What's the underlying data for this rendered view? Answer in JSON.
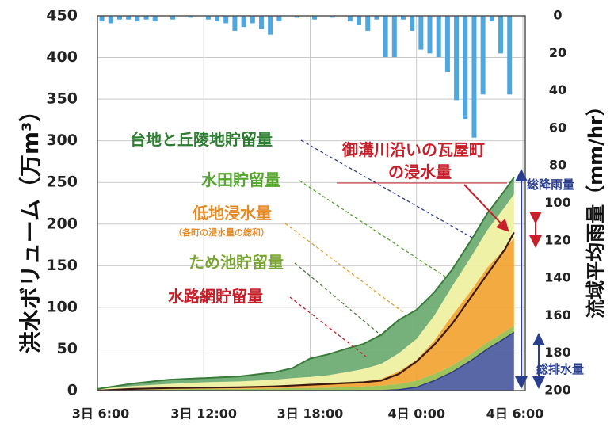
{
  "chart_data": {
    "type": "area",
    "ylabel_left": "洪水ボリューム（万m³）",
    "ylabel_right": "流域平均雨量（mm/hr）",
    "x_ticks": [
      "3日 6:00",
      "3日 12:00",
      "3日 18:00",
      "4日 0:00",
      "4日 6:00"
    ],
    "x_tick_hours": [
      0,
      6,
      12,
      18,
      24
    ],
    "ylim_left": [
      0,
      450
    ],
    "y_ticks_left": [
      0,
      50,
      100,
      150,
      200,
      250,
      300,
      350,
      400,
      450
    ],
    "ylim_right_inverted": [
      0,
      200
    ],
    "y_ticks_right": [
      0,
      20,
      40,
      60,
      80,
      100,
      120,
      140,
      160,
      180,
      200
    ],
    "grid": true,
    "x_hours": [
      0,
      2,
      4,
      6,
      8,
      10,
      11,
      12,
      13,
      14,
      15,
      16,
      17,
      18,
      19,
      20,
      21,
      22,
      23,
      23.5
    ],
    "series": [
      {
        "key": "waterway",
        "name": "水路網貯留量",
        "values": [
          0,
          0,
          0,
          0,
          0,
          0,
          0,
          0,
          0,
          0,
          0,
          0,
          1,
          4,
          12,
          22,
          35,
          50,
          63,
          70
        ]
      },
      {
        "key": "pond",
        "name": "ため池貯留量",
        "values": [
          0.5,
          1,
          1.5,
          2,
          2,
          2.5,
          3,
          3,
          3.5,
          4,
          5,
          6,
          7,
          8,
          8,
          8,
          8,
          8,
          8,
          8
        ]
      },
      {
        "key": "lowland",
        "name": "低地浸水量",
        "values": [
          0,
          0.5,
          1,
          1.5,
          2,
          2.5,
          3,
          3.5,
          4,
          5,
          6,
          8,
          15,
          25,
          40,
          60,
          75,
          90,
          100,
          105
        ]
      },
      {
        "key": "paddy",
        "name": "水田貯留量",
        "values": [
          1.5,
          4,
          5.5,
          6.5,
          7,
          8,
          9,
          10,
          11,
          13,
          15,
          18,
          22,
          25,
          30,
          35,
          40,
          45,
          50,
          53
        ]
      },
      {
        "key": "upland",
        "name": "台地と丘陵地貯留量",
        "values": [
          0,
          3,
          5,
          5,
          6,
          9,
          12,
          22,
          25,
          28,
          30,
          35,
          40,
          35,
          28,
          20,
          20,
          20,
          20,
          20
        ]
      }
    ],
    "kawaramachi_line": [
      0,
      2,
      3,
      3.5,
      4,
      5,
      6,
      7,
      8,
      9,
      10,
      12,
      20,
      35,
      55,
      80,
      110,
      140,
      170,
      190
    ],
    "annotations": {
      "upland": "台地と丘陵地貯留量",
      "kawaramachi_1": "御溝川沿いの瓦屋町",
      "kawaramachi_2": "の浸水量",
      "paddy": "水田貯留量",
      "lowland": "低地浸水量",
      "lowland_sub": "（各町の浸水量の総和）",
      "pond": "ため池貯留量",
      "waterway": "水路網貯留量",
      "total_rain": "総降雨量",
      "total_discharge": "総排水量"
    },
    "rainfall": {
      "hours": [
        0.25,
        0.75,
        1.25,
        1.75,
        2.25,
        2.75,
        3.25,
        4.25,
        5.25,
        6.25,
        6.75,
        7.25,
        7.75,
        8.25,
        8.75,
        9.25,
        9.75,
        10.25,
        11.25,
        12.25,
        13.25,
        14.25,
        14.75,
        15.25,
        15.75,
        16.25,
        16.75,
        17.25,
        17.75,
        18.25,
        18.75,
        19.25,
        19.75,
        20.25,
        20.75,
        21.25,
        21.75,
        22.25,
        22.75,
        23.25
      ],
      "mm_per_hr": [
        3,
        4,
        2,
        2,
        3,
        2,
        3,
        2,
        1,
        2,
        3,
        4,
        8,
        6,
        4,
        7,
        10,
        3,
        1,
        2,
        1,
        3,
        5,
        8,
        2,
        22,
        22,
        2,
        8,
        18,
        20,
        22,
        30,
        45,
        55,
        65,
        42,
        3,
        20,
        42
      ]
    },
    "colors": {
      "waterway": "#4c5aa0",
      "pond": "#96be4c",
      "lowland": "#f2a330",
      "paddy": "#eef0a0",
      "upland": "#6aaa70",
      "upland_edge": "#3a7a3a",
      "kawaramachi": "#d9322c",
      "rain": "#4ea7de",
      "bracket": "#2a3e8f"
    }
  }
}
